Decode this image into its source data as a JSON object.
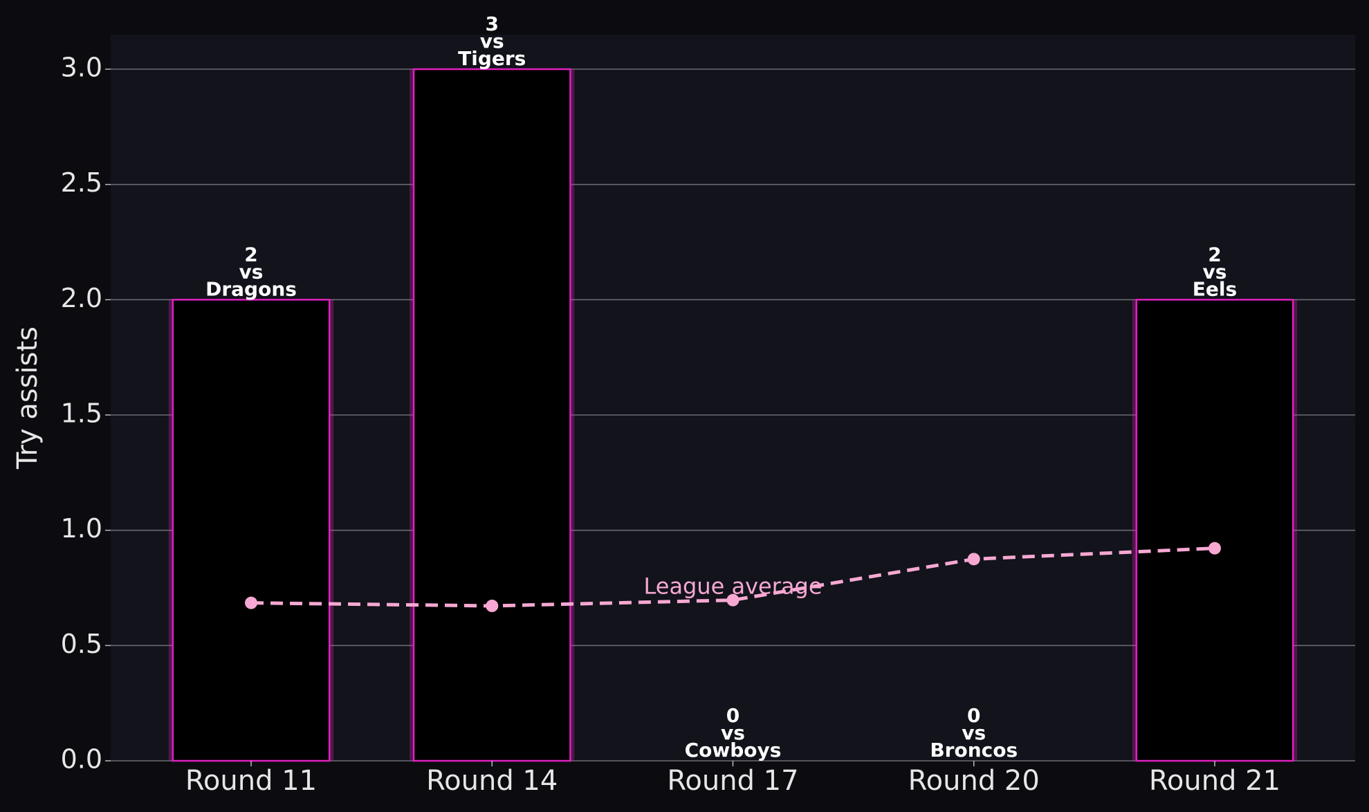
{
  "chart_data": {
    "type": "bar",
    "y_label": "Try assists",
    "categories": [
      "Round 11",
      "Round 14",
      "Round 17",
      "Round 20",
      "Round 21"
    ],
    "opponent_prefix": "vs",
    "opponents": [
      "Dragons",
      "Tigers",
      "Cowboys",
      "Broncos",
      "Eels"
    ],
    "series": [
      {
        "name": "Try assists",
        "type": "bar",
        "color": "#e020c0",
        "values": [
          2,
          3,
          0,
          0,
          2
        ]
      },
      {
        "name": "League average",
        "type": "line",
        "color": "#f7a8d2",
        "values": [
          0.685,
          0.672,
          0.697,
          0.875,
          0.922
        ]
      }
    ],
    "ylim": [
      0,
      3.15
    ],
    "yticks": [
      {
        "value": 0,
        "label": "0.0"
      },
      {
        "value": 0.5,
        "label": "0.5"
      },
      {
        "value": 1,
        "label": "1.0"
      },
      {
        "value": 1.5,
        "label": "1.5"
      },
      {
        "value": 2,
        "label": "2.0"
      },
      {
        "value": 2.5,
        "label": "2.5"
      },
      {
        "value": 3,
        "label": "3.0"
      }
    ],
    "grid": true
  }
}
